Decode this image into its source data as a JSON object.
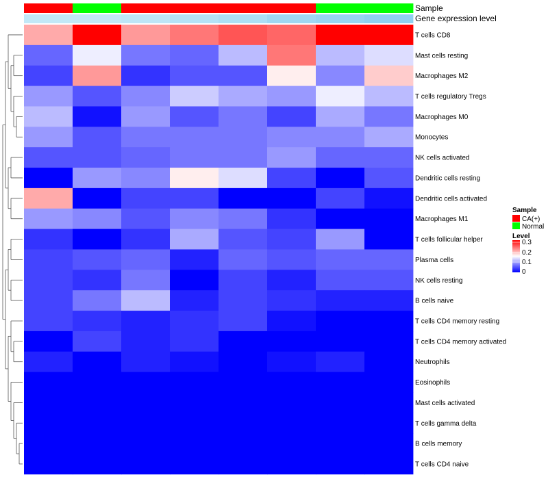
{
  "chart_data": {
    "type": "heatmap",
    "rows": [
      "T cells CD8",
      "Mast cells resting",
      "Macrophages M2",
      "T cells regulatory  Tregs",
      "Macrophages M0",
      "Monocytes",
      "NK cells activated",
      "Dendritic cells resting",
      "Dendritic cells activated",
      "Macrophages M1",
      "T cells follicular helper",
      "Plasma cells",
      "NK cells resting",
      "B cells naive",
      "T cells CD4 memory resting",
      "T cells CD4 memory activated",
      "Neutrophils",
      "Eosinophils",
      "Mast cells activated",
      "T cells gamma delta",
      "B cells memory",
      "T cells CD4 naive"
    ],
    "values": [
      [
        0.2,
        0.3,
        0.21,
        0.23,
        0.25,
        0.24,
        0.3,
        0.3
      ],
      [
        0.06,
        0.14,
        0.07,
        0.06,
        0.11,
        0.23,
        0.11,
        0.13
      ],
      [
        0.04,
        0.21,
        0.03,
        0.05,
        0.05,
        0.16,
        0.08,
        0.18
      ],
      [
        0.09,
        0.05,
        0.08,
        0.12,
        0.1,
        0.09,
        0.14,
        0.11
      ],
      [
        0.11,
        0.01,
        0.09,
        0.05,
        0.07,
        0.04,
        0.1,
        0.07
      ],
      [
        0.09,
        0.05,
        0.07,
        0.07,
        0.07,
        0.08,
        0.08,
        0.1
      ],
      [
        0.05,
        0.05,
        0.06,
        0.07,
        0.07,
        0.09,
        0.06,
        0.06
      ],
      [
        0.0,
        0.09,
        0.08,
        0.16,
        0.13,
        0.04,
        0.0,
        0.05
      ],
      [
        0.2,
        0.0,
        0.04,
        0.04,
        0.0,
        0.0,
        0.04,
        0.01
      ],
      [
        0.09,
        0.08,
        0.05,
        0.08,
        0.07,
        0.03,
        0.0,
        0.0
      ],
      [
        0.03,
        0.0,
        0.03,
        0.1,
        0.05,
        0.04,
        0.09,
        0.0
      ],
      [
        0.04,
        0.05,
        0.06,
        0.02,
        0.06,
        0.05,
        0.06,
        0.06
      ],
      [
        0.04,
        0.03,
        0.07,
        0.0,
        0.04,
        0.02,
        0.05,
        0.05
      ],
      [
        0.04,
        0.07,
        0.11,
        0.02,
        0.04,
        0.03,
        0.02,
        0.02
      ],
      [
        0.04,
        0.03,
        0.02,
        0.03,
        0.04,
        0.01,
        0.0,
        0.0
      ],
      [
        0.0,
        0.04,
        0.02,
        0.03,
        0.0,
        0.0,
        0.0,
        0.0
      ],
      [
        0.02,
        0.0,
        0.02,
        0.01,
        0.0,
        0.01,
        0.02,
        0.0
      ],
      [
        0.0,
        0.0,
        0.0,
        0.0,
        0.0,
        0.0,
        0.0,
        0.0
      ],
      [
        0.0,
        0.0,
        0.0,
        0.0,
        0.0,
        0.0,
        0.0,
        0.0
      ],
      [
        0.0,
        0.0,
        0.0,
        0.0,
        0.0,
        0.0,
        0.0,
        0.0
      ],
      [
        0.0,
        0.0,
        0.0,
        0.0,
        0.0,
        0.0,
        0.0,
        0.0
      ],
      [
        0.0,
        0.0,
        0.0,
        0.0,
        0.0,
        0.0,
        0.0,
        0.0
      ]
    ],
    "column_annotations": [
      {
        "label": "Sample",
        "values": [
          "CA(+)",
          "Normal",
          "CA(+)",
          "CA(+)",
          "CA(+)",
          "CA(+)",
          "Normal",
          "Normal"
        ]
      },
      {
        "label": "Gene expression level",
        "levels": [
          0.3,
          0.3,
          0.35,
          0.45,
          0.55,
          0.7,
          0.8,
          0.9
        ]
      }
    ],
    "color_scale": {
      "min": 0,
      "max": 0.3,
      "low_color": "#0000ff",
      "mid_color": "#ffffff",
      "high_color": "#ff0000",
      "midpoint": 0.15
    },
    "gene_expression_colors": {
      "low": "#dcf3fa",
      "high": "#86cdf0"
    },
    "sample_colors": {
      "CA(+)": "#ff0000",
      "Normal": "#00ff00"
    },
    "legend": {
      "sample_title": "Sample",
      "sample_entries": [
        "CA(+)",
        "Normal"
      ],
      "level_title": "Level",
      "level_ticks": [
        "0.3",
        "0.2",
        "0.1",
        "0"
      ]
    },
    "row_dendrogram": true,
    "grid": false,
    "legend_position": "right"
  }
}
